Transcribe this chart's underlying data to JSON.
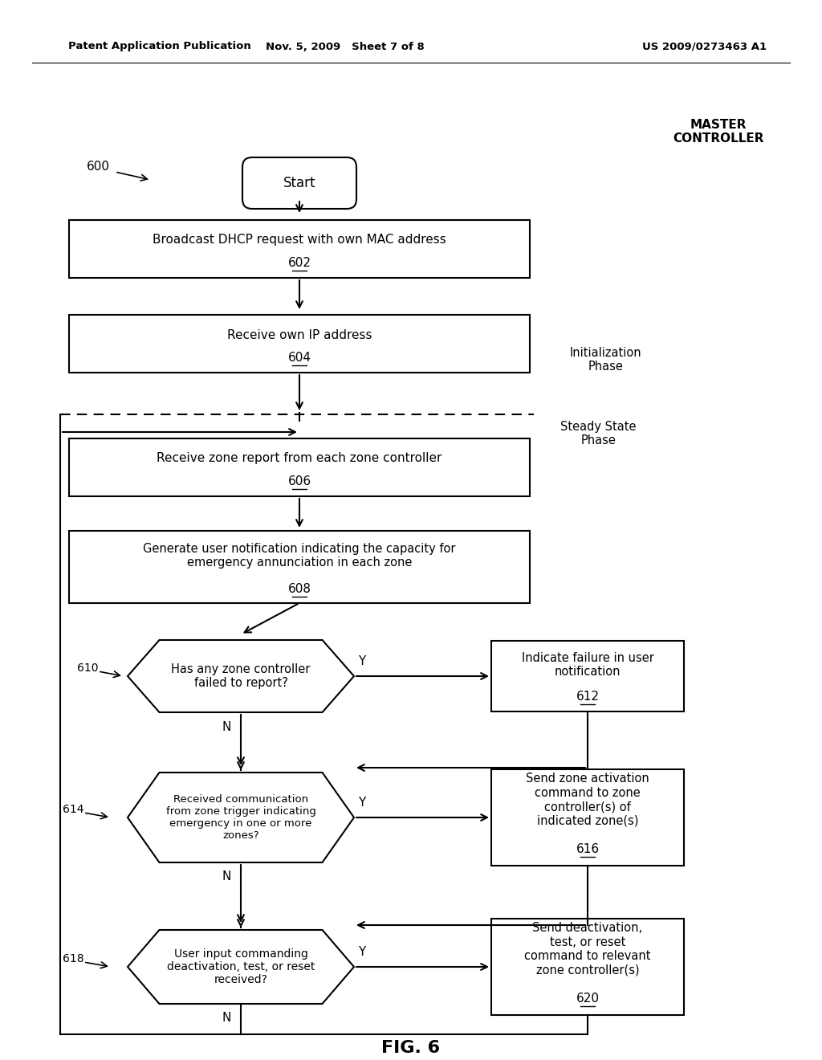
{
  "bg_color": "#ffffff",
  "header_left": "Patent Application Publication",
  "header_mid": "Nov. 5, 2009   Sheet 7 of 8",
  "header_right": "US 2009/0273463 A1",
  "fig_label": "FIG. 6",
  "master_controller": "MASTER\nCONTROLLER",
  "init_phase": "Initialization\nPhase",
  "steady_phase": "Steady State\nPhase",
  "label_600": "600",
  "start_text": "Start",
  "b602_text": "Broadcast DHCP request with own MAC address",
  "b602_label": "602",
  "b604_text": "Receive own IP address",
  "b604_label": "604",
  "b606_text": "Receive zone report from each zone controller",
  "b606_label": "606",
  "b608_text": "Generate user notification indicating the capacity for\nemergency annunciation in each zone",
  "b608_label": "608",
  "d610_text": "Has any zone controller\nfailed to report?",
  "d610_label": "610",
  "b612_text": "Indicate failure in user\nnotification",
  "b612_label": "612",
  "d614_text": "Received communication\nfrom zone trigger indicating\nemergency in one or more\nzones?",
  "d614_label": "614",
  "b616_text": "Send zone activation\ncommand to zone\ncontroller(s) of\nindicated zone(s)",
  "b616_label": "616",
  "d618_text": "User input commanding\ndeactivation, test, or reset\nreceived?",
  "d618_label": "618",
  "b620_text": "Send deactivation,\ntest, or reset\ncommand to relevant\nzone controller(s)",
  "b620_label": "620"
}
